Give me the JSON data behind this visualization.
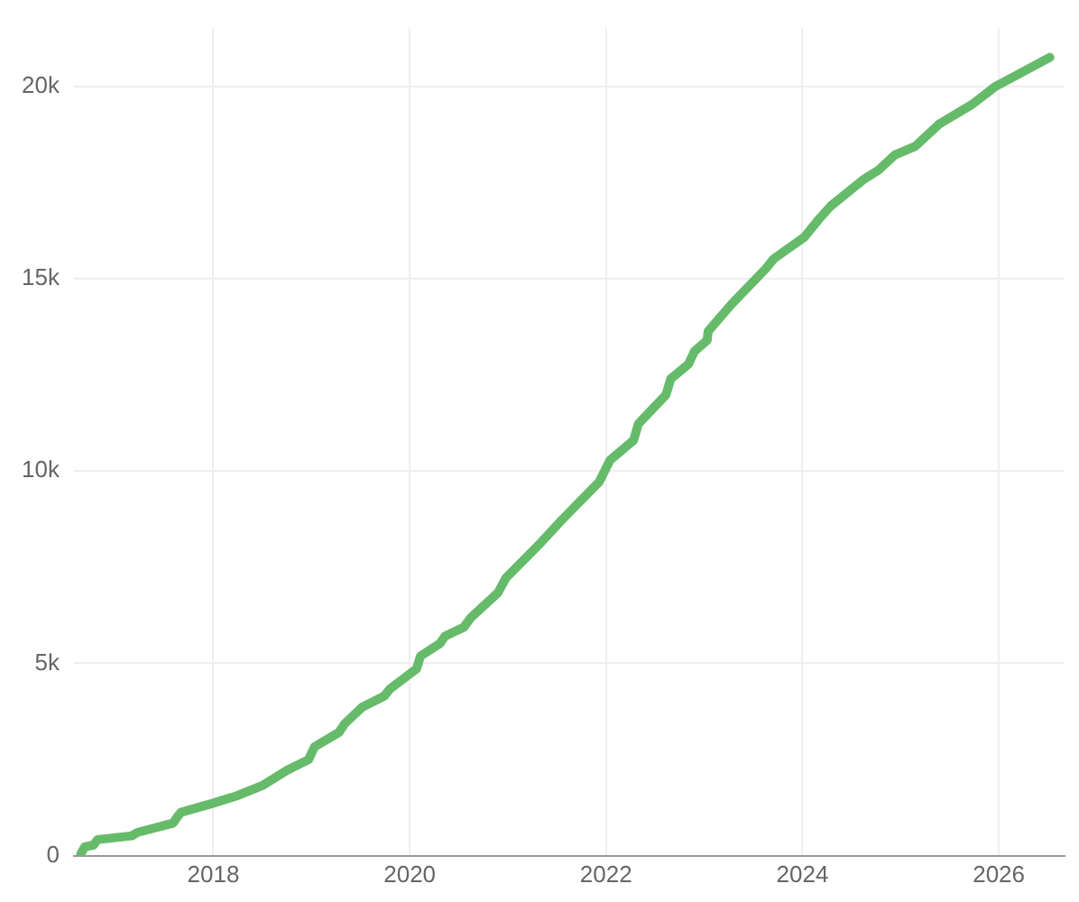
{
  "chart_data": {
    "type": "line",
    "xlim": [
      2016.58,
      2026.67
    ],
    "ylim": [
      0,
      21500
    ],
    "xticks": [
      2018,
      2020,
      2022,
      2024,
      2026
    ],
    "yticks": [
      0,
      {
        "value": 5000,
        "label": "5k"
      },
      {
        "value": 10000,
        "label": "10k"
      },
      {
        "value": 15000,
        "label": "15k"
      },
      {
        "value": 20000,
        "label": "20k"
      }
    ],
    "grid": true,
    "legend": false,
    "marker": "none",
    "line_style": "solid",
    "series": [
      {
        "color": "#66bb6a",
        "x": [
          2016.65,
          2016.69,
          2016.78,
          2016.82,
          2017.17,
          2017.23,
          2017.59,
          2017.63,
          2017.67,
          2018.0,
          2018.24,
          2018.51,
          2018.75,
          2018.97,
          2019.03,
          2019.28,
          2019.34,
          2019.52,
          2019.74,
          2019.8,
          2020.07,
          2020.11,
          2020.31,
          2020.36,
          2020.55,
          2020.62,
          2020.9,
          2020.98,
          2021.31,
          2021.55,
          2021.93,
          2022.04,
          2022.28,
          2022.33,
          2022.61,
          2022.66,
          2022.84,
          2022.9,
          2023.03,
          2023.04,
          2023.28,
          2023.62,
          2023.71,
          2024.02,
          2024.17,
          2024.29,
          2024.63,
          2024.78,
          2024.94,
          2025.15,
          2025.39,
          2025.73,
          2025.97,
          2026.52
        ],
        "values": [
          50,
          230,
          280,
          420,
          520,
          610,
          850,
          1000,
          1130,
          1370,
          1560,
          1840,
          2220,
          2500,
          2830,
          3210,
          3440,
          3870,
          4150,
          4340,
          4860,
          5190,
          5520,
          5710,
          5940,
          6180,
          6840,
          7220,
          8070,
          8730,
          9720,
          10280,
          10800,
          11230,
          11980,
          12400,
          12780,
          13110,
          13400,
          13630,
          14340,
          15240,
          15520,
          16080,
          16550,
          16890,
          17590,
          17830,
          18210,
          18440,
          19010,
          19530,
          20000,
          20750
        ]
      }
    ]
  }
}
